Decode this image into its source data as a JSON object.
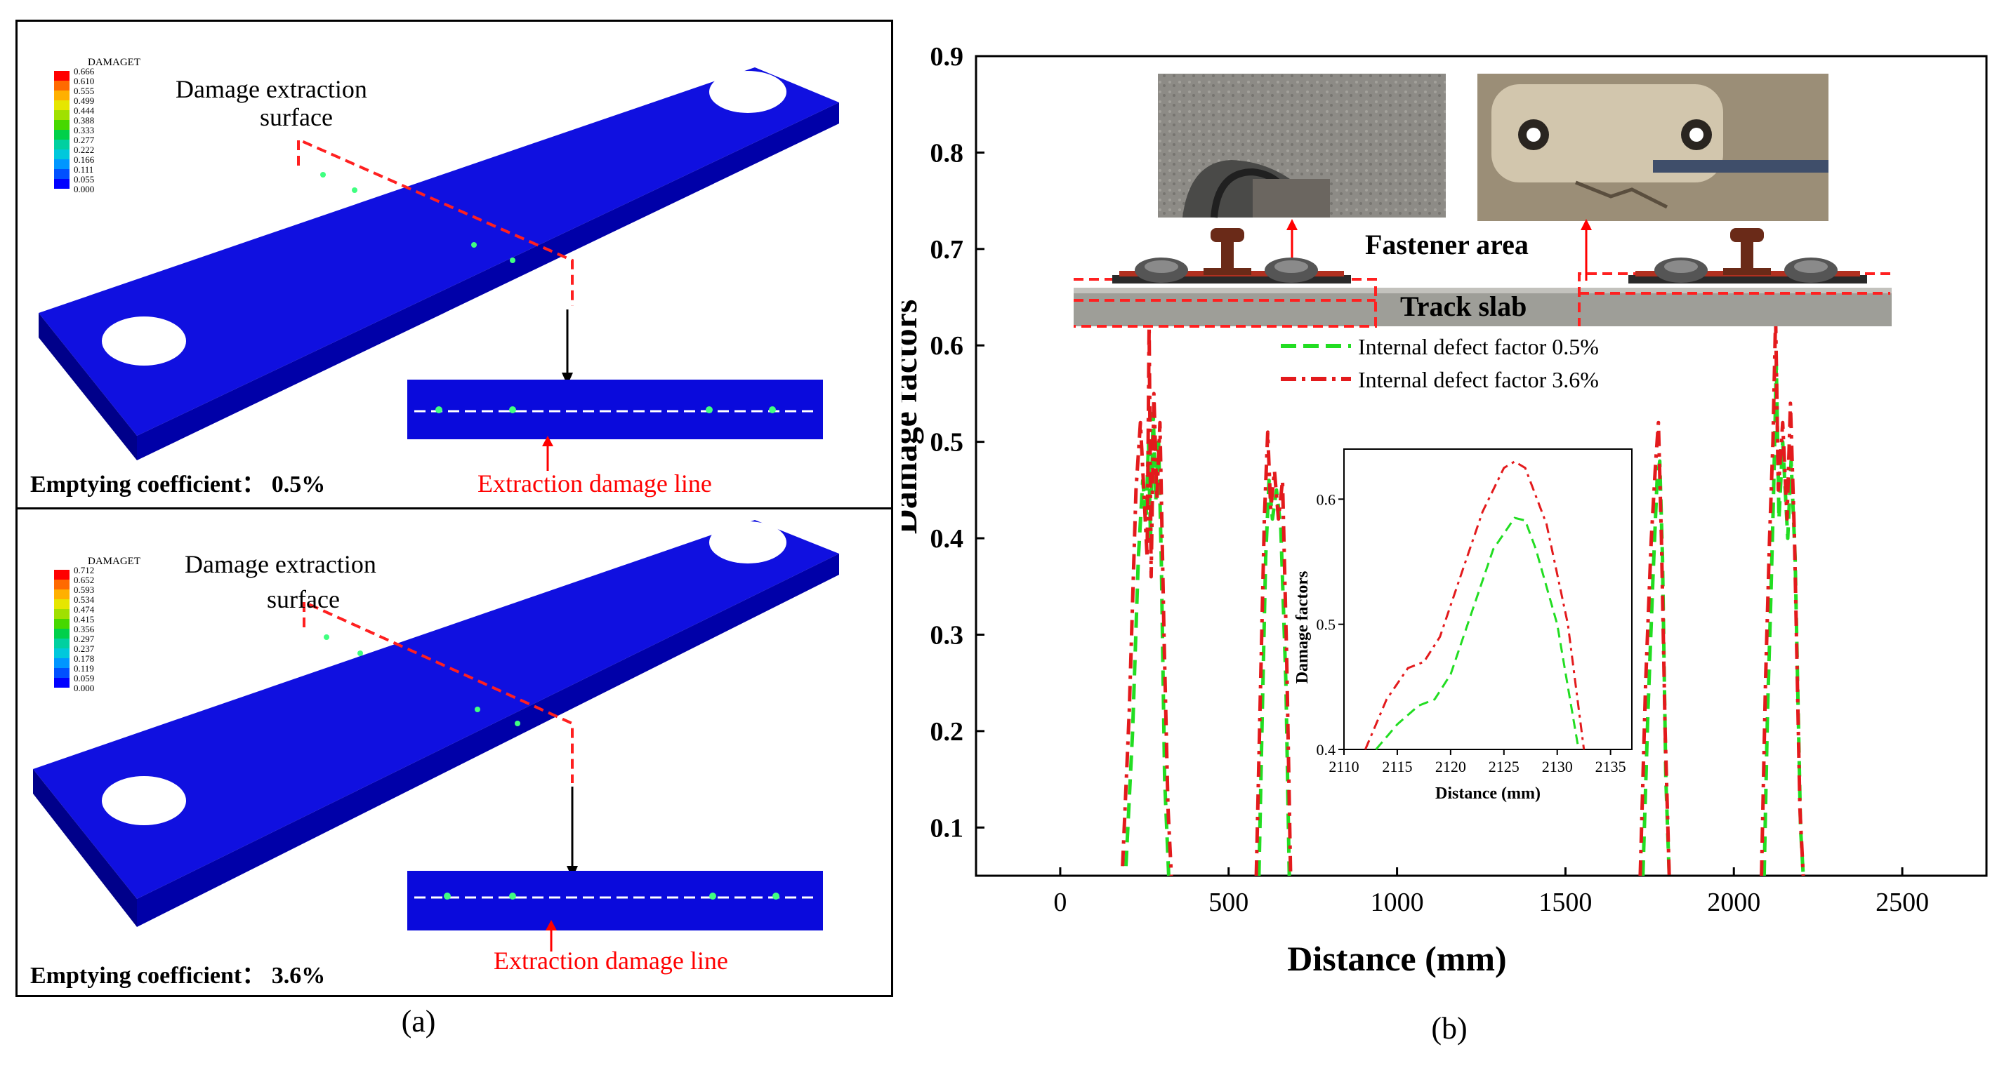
{
  "panel_a": {
    "caption": "(a)",
    "top": {
      "legend_title": "DAMAGET",
      "legend_values": [
        "0.666",
        "0.610",
        "0.555",
        "0.499",
        "0.444",
        "0.388",
        "0.333",
        "0.277",
        "0.222",
        "0.166",
        "0.111",
        "0.055",
        "0.000"
      ],
      "surface_label_1": "Damage extraction",
      "surface_label_2": "surface",
      "coef_label": "Emptying coefficient： 0.5%",
      "line_label": "Extraction damage line"
    },
    "bottom": {
      "legend_title": "DAMAGET",
      "legend_values": [
        "0.712",
        "0.652",
        "0.593",
        "0.534",
        "0.474",
        "0.415",
        "0.356",
        "0.297",
        "0.237",
        "0.178",
        "0.119",
        "0.059",
        "0.000"
      ],
      "surface_label_1": "Damage extraction",
      "surface_label_2": "surface",
      "coef_label": "Emptying coefficient： 3.6%",
      "line_label": "Extraction damage line"
    },
    "legend_colors": [
      "#ff0000",
      "#ff6a00",
      "#ffb000",
      "#e6e600",
      "#a0e000",
      "#46d800",
      "#00d04a",
      "#00d0a0",
      "#00c8dc",
      "#0096ff",
      "#0050ff",
      "#0000ff"
    ]
  },
  "panel_b": {
    "caption": "(b)",
    "fastener_label": "Fastener area",
    "slab_label": "Track slab"
  },
  "chart_data": {
    "type": "line",
    "title": "",
    "xlabel": "Distance (mm)",
    "ylabel": "Damage factors",
    "xlim": [
      -250,
      2750
    ],
    "ylim": [
      0.05,
      0.9
    ],
    "xticks": [
      0,
      500,
      1000,
      1500,
      2000,
      2500
    ],
    "yticks": [
      0.1,
      0.2,
      0.3,
      0.4,
      0.5,
      0.6,
      0.7,
      0.8,
      0.9
    ],
    "legend_position": "upper-center",
    "series": [
      {
        "name": "Internal defect factor 0.5%",
        "color": "#22dd22",
        "segments": [
          [
            [
              195,
              0.06
            ],
            [
              215,
              0.2
            ],
            [
              232,
              0.38
            ],
            [
              245,
              0.46
            ],
            [
              255,
              0.42
            ],
            [
              262,
              0.5
            ],
            [
              268,
              0.4
            ],
            [
              276,
              0.53
            ],
            [
              284,
              0.44
            ],
            [
              292,
              0.5
            ],
            [
              300,
              0.38
            ],
            [
              310,
              0.15
            ],
            [
              322,
              0.05
            ]
          ],
          [
            [
              590,
              0.05
            ],
            [
              600,
              0.22
            ],
            [
              610,
              0.38
            ],
            [
              620,
              0.46
            ],
            [
              630,
              0.42
            ],
            [
              642,
              0.45
            ],
            [
              655,
              0.41
            ],
            [
              670,
              0.25
            ],
            [
              680,
              0.05
            ]
          ],
          [
            [
              1730,
              0.05
            ],
            [
              1745,
              0.22
            ],
            [
              1760,
              0.36
            ],
            [
              1772,
              0.46
            ],
            [
              1780,
              0.48
            ],
            [
              1788,
              0.38
            ],
            [
              1798,
              0.15
            ],
            [
              1808,
              0.05
            ]
          ],
          [
            [
              2090,
              0.05
            ],
            [
              2100,
              0.22
            ],
            [
              2110,
              0.34
            ],
            [
              2118,
              0.45
            ],
            [
              2126,
              0.58
            ],
            [
              2134,
              0.42
            ],
            [
              2145,
              0.5
            ],
            [
              2160,
              0.4
            ],
            [
              2170,
              0.48
            ],
            [
              2182,
              0.38
            ],
            [
              2198,
              0.1
            ],
            [
              2206,
              0.05
            ]
          ]
        ]
      },
      {
        "name": "Internal defect factor 3.6%",
        "color": "#e31a1c",
        "segments": [
          [
            [
              185,
              0.06
            ],
            [
              205,
              0.22
            ],
            [
              225,
              0.45
            ],
            [
              238,
              0.52
            ],
            [
              248,
              0.45
            ],
            [
              258,
              0.38
            ],
            [
              264,
              0.62
            ],
            [
              270,
              0.36
            ],
            [
              278,
              0.55
            ],
            [
              287,
              0.44
            ],
            [
              296,
              0.52
            ],
            [
              308,
              0.3
            ],
            [
              320,
              0.12
            ],
            [
              330,
              0.05
            ]
          ],
          [
            [
              582,
              0.05
            ],
            [
              595,
              0.25
            ],
            [
              606,
              0.42
            ],
            [
              616,
              0.51
            ],
            [
              625,
              0.43
            ],
            [
              636,
              0.47
            ],
            [
              648,
              0.42
            ],
            [
              660,
              0.46
            ],
            [
              672,
              0.28
            ],
            [
              684,
              0.05
            ]
          ],
          [
            [
              1722,
              0.05
            ],
            [
              1738,
              0.25
            ],
            [
              1755,
              0.4
            ],
            [
              1768,
              0.48
            ],
            [
              1776,
              0.52
            ],
            [
              1785,
              0.4
            ],
            [
              1796,
              0.2
            ],
            [
              1808,
              0.05
            ]
          ],
          [
            [
              2082,
              0.05
            ],
            [
              2094,
              0.25
            ],
            [
              2106,
              0.4
            ],
            [
              2116,
              0.5
            ],
            [
              2124,
              0.63
            ],
            [
              2132,
              0.45
            ],
            [
              2145,
              0.52
            ],
            [
              2158,
              0.42
            ],
            [
              2168,
              0.54
            ],
            [
              2180,
              0.4
            ],
            [
              2196,
              0.12
            ],
            [
              2206,
              0.05
            ]
          ]
        ]
      }
    ],
    "inset": {
      "type": "line",
      "xlabel": "Distance (mm)",
      "ylabel": "Damage factors",
      "xlim": [
        2110,
        2137
      ],
      "ylim": [
        0.4,
        0.64
      ],
      "xticks": [
        2110,
        2115,
        2120,
        2125,
        2130,
        2135
      ],
      "yticks": [
        0.4,
        0.5,
        0.6
      ],
      "series": [
        {
          "name": "Internal defect factor 0.5%",
          "color": "#22dd22",
          "points": [
            [
              2113,
              0.4
            ],
            [
              2115,
              0.42
            ],
            [
              2117,
              0.435
            ],
            [
              2118.5,
              0.44
            ],
            [
              2120,
              0.46
            ],
            [
              2122,
              0.51
            ],
            [
              2124,
              0.56
            ],
            [
              2126,
              0.585
            ],
            [
              2127,
              0.583
            ],
            [
              2128,
              0.56
            ],
            [
              2130,
              0.5
            ],
            [
              2131,
              0.45
            ],
            [
              2132,
              0.4
            ]
          ]
        },
        {
          "name": "Internal defect factor 3.6%",
          "color": "#e31a1c",
          "points": [
            [
              2112,
              0.4
            ],
            [
              2114,
              0.44
            ],
            [
              2116,
              0.465
            ],
            [
              2117.5,
              0.47
            ],
            [
              2119,
              0.49
            ],
            [
              2121,
              0.54
            ],
            [
              2123,
              0.59
            ],
            [
              2125,
              0.625
            ],
            [
              2126,
              0.63
            ],
            [
              2127,
              0.625
            ],
            [
              2129,
              0.58
            ],
            [
              2131,
              0.5
            ],
            [
              2132.5,
              0.4
            ]
          ]
        }
      ]
    }
  }
}
